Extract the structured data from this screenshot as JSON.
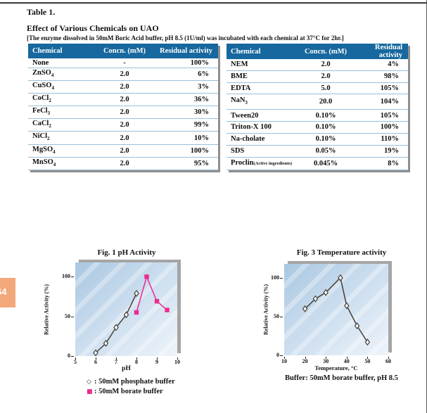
{
  "page": {
    "tab_number": "64"
  },
  "header": {
    "table_label": "Table 1.",
    "title": "Effect of Various Chemicals on UAO",
    "subtitle": "[The enzyme dissolved in 50mM Boric Acid buffer, pH 8.5 (1U/ml) was incubated with each chemical at 37°C  for 2hr.]"
  },
  "tables": {
    "columns": [
      "Chemical",
      "Concn. (mM)",
      "Residual activity"
    ],
    "left": {
      "rows": [
        [
          "None",
          "-",
          "100%"
        ],
        [
          "ZnSO_4",
          "2.0",
          "6%"
        ],
        [
          "CuSO_4",
          "2.0",
          "3%"
        ],
        [
          "CoCl_2",
          "2.0",
          "36%"
        ],
        [
          "FeCl_3",
          "2.0",
          "30%"
        ],
        [
          "CaCl_2",
          "2.0",
          "99%"
        ],
        [
          "NiCl_2",
          "2.0",
          "10%"
        ],
        [
          "MgSO_4",
          "2.0",
          "100%"
        ],
        [
          "MnSO_4",
          "2.0",
          "95%"
        ]
      ]
    },
    "right": {
      "rows": [
        [
          "NEM",
          "2.0",
          "4%"
        ],
        [
          "BME",
          "2.0",
          "98%"
        ],
        [
          "EDTA",
          "5.0",
          "105%"
        ],
        [
          "NaN_3",
          "20.0",
          "104%"
        ],
        [
          "Tween20",
          "0.10%",
          "105%"
        ],
        [
          "Triton-X 100",
          "0.10%",
          "100%"
        ],
        [
          "Na-cholate",
          "0.10%",
          "110%"
        ],
        [
          "SDS",
          "0.05%",
          "19%"
        ],
        [
          "Proclin|(Active ingredients)",
          "0.045%",
          "8%"
        ]
      ]
    }
  },
  "chart_data": [
    {
      "id": "fig1",
      "type": "line",
      "title": "Fig. 1  pH Activity",
      "xlabel": "pH",
      "ylabel": "Relative Activity (%)",
      "xlim": [
        5,
        10
      ],
      "ylim": [
        0,
        118
      ],
      "xticks": [
        5,
        6,
        7,
        8,
        9,
        10
      ],
      "yticks": [
        0,
        50,
        100
      ],
      "grid": false,
      "legend_position": "below",
      "series": [
        {
          "name": "50mM phosphate buffer",
          "marker": "diamond-open",
          "color": "#474038",
          "x": [
            6,
            6.5,
            7,
            7.5,
            8
          ],
          "y": [
            4,
            16,
            36,
            52,
            79
          ]
        },
        {
          "name": "50mM borate buffer",
          "marker": "square",
          "color": "#EE2A8F",
          "x": [
            8,
            8.5,
            9,
            9.5
          ],
          "y": [
            55,
            100,
            69,
            58
          ]
        }
      ],
      "legend": [
        {
          "symbol": "◇",
          "color": "#2b2b2b",
          "label": ": 50mM phosphate buffer"
        },
        {
          "symbol": "■",
          "color": "#EE2A8F",
          "label": ": 50mM borate buffer"
        }
      ]
    },
    {
      "id": "fig3",
      "type": "line",
      "title": "Fig. 3   Temperature activity",
      "xlabel": "Temperature, °C",
      "ylabel": "Relative Activity (%)",
      "xlim": [
        10,
        60
      ],
      "ylim": [
        0,
        118
      ],
      "xticks": [
        10,
        20,
        30,
        40,
        50,
        60
      ],
      "yticks": [
        0,
        50,
        100
      ],
      "grid": false,
      "series": [
        {
          "name": "Temperature activity",
          "marker": "diamond-open",
          "color": "#474038",
          "x": [
            20,
            25,
            30,
            37,
            40,
            45,
            50
          ],
          "y": [
            60,
            73,
            81,
            100,
            64,
            38,
            17
          ]
        }
      ],
      "caption": "Buffer: 50mM borate buffer, pH 8.5"
    }
  ],
  "colors": {
    "table_header_bg": "#16689E",
    "row_separator": "#99BFDB",
    "series_dark": "#474038",
    "series_pink": "#EE2A8F",
    "page_tab_bg": "#F2A879"
  }
}
